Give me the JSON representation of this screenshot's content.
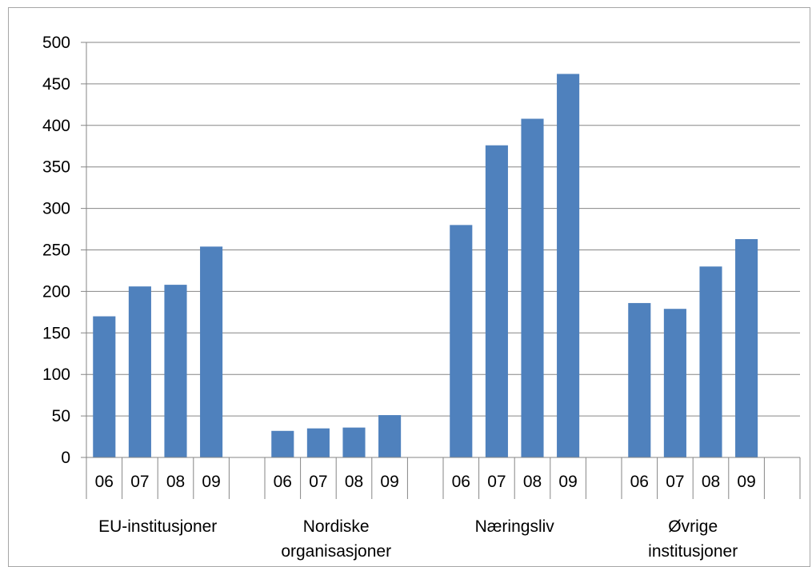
{
  "chart_data": {
    "type": "bar",
    "groups": [
      "EU-institusjoner",
      "Nordiske organisasjoner",
      "Næringsliv",
      "Øvrige institusjoner"
    ],
    "group_label_lines": [
      [
        "EU-institusjoner"
      ],
      [
        "Nordiske",
        "organisasjoner"
      ],
      [
        "Næringsliv"
      ],
      [
        "Øvrige",
        "institusjoner"
      ]
    ],
    "subcategories": [
      "06",
      "07",
      "08",
      "09"
    ],
    "values": [
      [
        170,
        206,
        208,
        254
      ],
      [
        32,
        35,
        36,
        51
      ],
      [
        280,
        376,
        408,
        462
      ],
      [
        186,
        179,
        230,
        263
      ]
    ],
    "ylim": [
      0,
      500
    ],
    "yticks": [
      0,
      50,
      100,
      150,
      200,
      250,
      300,
      350,
      400,
      450,
      500
    ],
    "grid": true,
    "bar_color": "#4f81bd",
    "grid_color": "#868686",
    "title": "",
    "xlabel": "",
    "ylabel": ""
  }
}
